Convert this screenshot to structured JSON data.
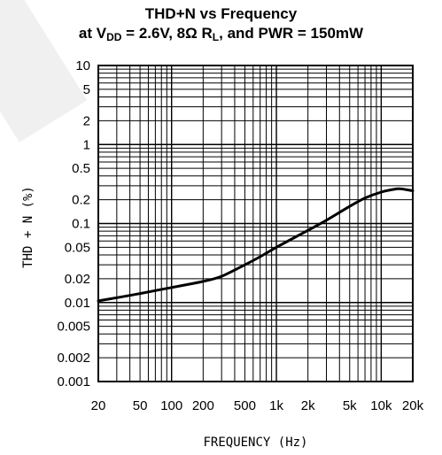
{
  "title_line1": "THD+N vs Frequency",
  "title_line2": {
    "prefix": "at V",
    "vdd_sub": "DD",
    "mid": " = 2.6V, 8Ω R",
    "rl_sub": "L",
    "suffix": ", and PWR = 150mW"
  },
  "chart_data": {
    "type": "line",
    "xlabel": "FREQUENCY (Hz)",
    "ylabel": "THD + N (%)",
    "x_scale": "log",
    "y_scale": "log",
    "xlim": [
      20,
      20000
    ],
    "ylim": [
      0.001,
      10
    ],
    "grid": true,
    "x_ticks": [
      {
        "value": 20,
        "label": "20"
      },
      {
        "value": 50,
        "label": "50"
      },
      {
        "value": 100,
        "label": "100"
      },
      {
        "value": 200,
        "label": "200"
      },
      {
        "value": 500,
        "label": "500"
      },
      {
        "value": 1000,
        "label": "1k"
      },
      {
        "value": 2000,
        "label": "2k"
      },
      {
        "value": 5000,
        "label": "5k"
      },
      {
        "value": 10000,
        "label": "10k"
      },
      {
        "value": 20000,
        "label": "20k"
      }
    ],
    "y_ticks": [
      {
        "value": 10,
        "label": "10"
      },
      {
        "value": 5,
        "label": "5"
      },
      {
        "value": 2,
        "label": "2"
      },
      {
        "value": 1,
        "label": "1"
      },
      {
        "value": 0.5,
        "label": "0.5"
      },
      {
        "value": 0.2,
        "label": "0.2"
      },
      {
        "value": 0.1,
        "label": "0.1"
      },
      {
        "value": 0.05,
        "label": "0.05"
      },
      {
        "value": 0.02,
        "label": "0.02"
      },
      {
        "value": 0.01,
        "label": "0.01"
      },
      {
        "value": 0.005,
        "label": "0.005"
      },
      {
        "value": 0.002,
        "label": "0.002"
      },
      {
        "value": 0.001,
        "label": "0.001"
      }
    ],
    "series": [
      {
        "x": [
          20,
          30,
          50,
          100,
          200,
          300,
          500,
          700,
          1000,
          2000,
          3000,
          5000,
          7000,
          10000,
          13000,
          15000,
          20000
        ],
        "y": [
          0.0105,
          0.0115,
          0.013,
          0.0155,
          0.0185,
          0.0215,
          0.03,
          0.038,
          0.05,
          0.082,
          0.11,
          0.165,
          0.21,
          0.25,
          0.27,
          0.275,
          0.26
        ]
      }
    ]
  },
  "colors": {
    "line": "#000000",
    "grid": "#000000",
    "background": "#ffffff"
  }
}
